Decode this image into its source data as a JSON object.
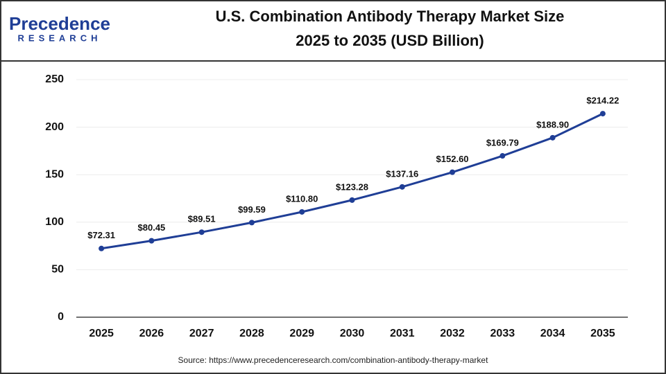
{
  "logo": {
    "name": "Precedence",
    "tagline": "RESEARCH"
  },
  "chart_data": {
    "type": "line",
    "title": [
      "U.S. Combination Antibody Therapy Market Size",
      "2025 to 2035 (USD Billion)"
    ],
    "categories": [
      "2025",
      "2026",
      "2027",
      "2028",
      "2029",
      "2030",
      "2031",
      "2032",
      "2033",
      "2034",
      "2035"
    ],
    "values": [
      72.31,
      80.45,
      89.51,
      99.59,
      110.8,
      123.28,
      137.16,
      152.6,
      169.79,
      188.9,
      214.22
    ],
    "value_labels": [
      "$72.31",
      "$80.45",
      "$89.51",
      "$99.59",
      "$110.80",
      "$123.28",
      "$137.16",
      "$152.60",
      "$169.79",
      "$188.90",
      "$214.22"
    ],
    "color": "#1f3e96",
    "ylim": [
      0,
      250
    ],
    "yticks": [
      0,
      50,
      100,
      150,
      200,
      250
    ],
    "grid": true,
    "source": "Source: https://www.precedenceresearch.com/combination-antibody-therapy-market"
  }
}
